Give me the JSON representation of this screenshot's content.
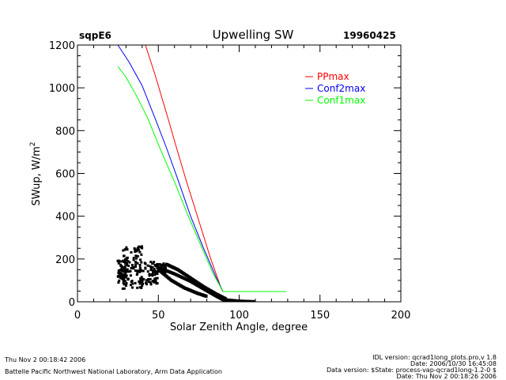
{
  "header": {
    "site": "sqpE6",
    "title": "Upwelling  SW",
    "date": "19960425"
  },
  "footer": {
    "left_line1": "Thu Nov  2 00:18:42 2006",
    "left_line2": "Battelle Pacific Northwest National Laboratory, Arm Data Application",
    "right_lines": [
      "IDL version: qcrad1long_plots.pro,v 1.8",
      "Date: 2006/10/30 16:45:08",
      "Data version: $State: process-vap-qcrad1long-1.2-0 $",
      "Date: Thu Nov  2 00:18:26 2006"
    ]
  },
  "chart_data": {
    "type": "line",
    "title": "Upwelling  SW",
    "xlabel": "Solar Zenith Angle, degree",
    "ylabel": "SWup, W/m^2",
    "xlim": [
      0,
      200
    ],
    "ylim": [
      0,
      1200
    ],
    "xticks": [
      0,
      50,
      100,
      150,
      200
    ],
    "xtick_labels": [
      "0",
      "50",
      "100",
      "150",
      "200"
    ],
    "yticks": [
      0,
      200,
      400,
      600,
      800,
      1000,
      1200
    ],
    "ytick_labels": [
      "0",
      "200",
      "400",
      "600",
      "800",
      "1000",
      "1200"
    ],
    "x_minor_step": 10,
    "y_minor_step": 50,
    "grid": false,
    "legend_position": "top-right",
    "series": [
      {
        "name": "PPmax",
        "color": "#ff0000",
        "x": [
          42,
          48,
          56,
          62,
          67.5,
          75,
          82,
          89,
          90,
          129
        ],
        "y": [
          1200,
          1060,
          857,
          700,
          561,
          380,
          210,
          60,
          48,
          48
        ]
      },
      {
        "name": "Conf2max",
        "color": "#0000ff",
        "x": [
          25,
          32,
          40,
          48,
          55,
          62.6,
          70,
          78,
          86,
          90,
          129
        ],
        "y": [
          1200,
          1120,
          1010,
          857,
          720,
          561,
          400,
          250,
          110,
          48,
          48
        ]
      },
      {
        "name": "Conf1max",
        "color": "#00ff00",
        "x": [
          25,
          30,
          36,
          43.5,
          52,
          60,
          68,
          76,
          84,
          90,
          129
        ],
        "y": [
          1100,
          1050,
          970,
          857,
          700,
          561,
          410,
          270,
          130,
          48,
          48
        ]
      }
    ],
    "scatter": {
      "name": "observed",
      "color": "#000000",
      "clusters": [
        {
          "x_range": [
            25,
            30
          ],
          "y_range": [
            90,
            200
          ],
          "count": 60
        },
        {
          "x_range": [
            28,
            40
          ],
          "y_range": [
            60,
            260
          ],
          "count": 80
        },
        {
          "x_range": [
            38,
            50
          ],
          "y_range": [
            80,
            190
          ],
          "count": 70
        },
        {
          "x_range": [
            48,
            55
          ],
          "y_range": [
            130,
            180
          ],
          "count": 40
        }
      ],
      "bands": [
        {
          "x": [
            50,
            60,
            70,
            78,
            85,
            90,
            100,
            110
          ],
          "y": [
            160,
            130,
            95,
            60,
            30,
            10,
            3,
            0
          ]
        },
        {
          "x": [
            50,
            58,
            66,
            74,
            80
          ],
          "y": [
            150,
            100,
            65,
            40,
            25
          ]
        },
        {
          "x": [
            55,
            62,
            70,
            78,
            86,
            92
          ],
          "y": [
            175,
            150,
            110,
            70,
            35,
            12
          ]
        }
      ]
    }
  }
}
